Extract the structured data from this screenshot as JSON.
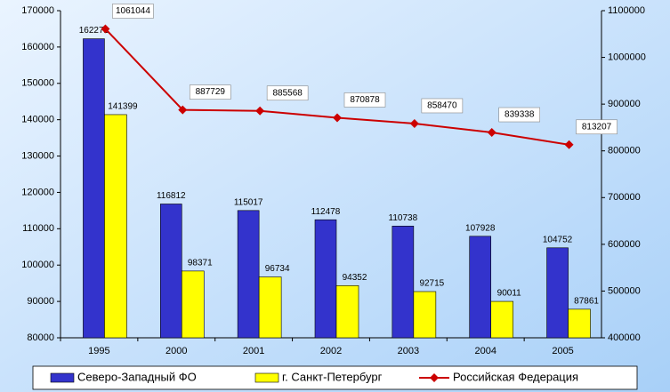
{
  "chart_data": {
    "type": "bar",
    "categories": [
      "1995",
      "2000",
      "2001",
      "2002",
      "2003",
      "2004",
      "2005"
    ],
    "series": [
      {
        "name": "Северо-Западный ФО",
        "color": "#3333cc",
        "values": [
          162271,
          116812,
          115017,
          112478,
          110738,
          107928,
          104752
        ]
      },
      {
        "name": "г. Санкт-Петербург",
        "color": "#ffff00",
        "values": [
          141399,
          98371,
          96734,
          94352,
          92715,
          90011,
          87861
        ]
      },
      {
        "name": "Российская Федерация",
        "color": "#cc0000",
        "type": "line",
        "axis": "y2",
        "values": [
          1061044,
          887729,
          885568,
          870878,
          858470,
          839338,
          813207
        ]
      }
    ],
    "ylim": [
      80000,
      170000
    ],
    "yticks": [
      80000,
      90000,
      100000,
      110000,
      120000,
      130000,
      140000,
      150000,
      160000,
      170000
    ],
    "y2lim": [
      400000,
      1100000
    ],
    "y2ticks": [
      400000,
      500000,
      600000,
      700000,
      800000,
      900000,
      1000000,
      1100000
    ],
    "legend": "bottom"
  }
}
